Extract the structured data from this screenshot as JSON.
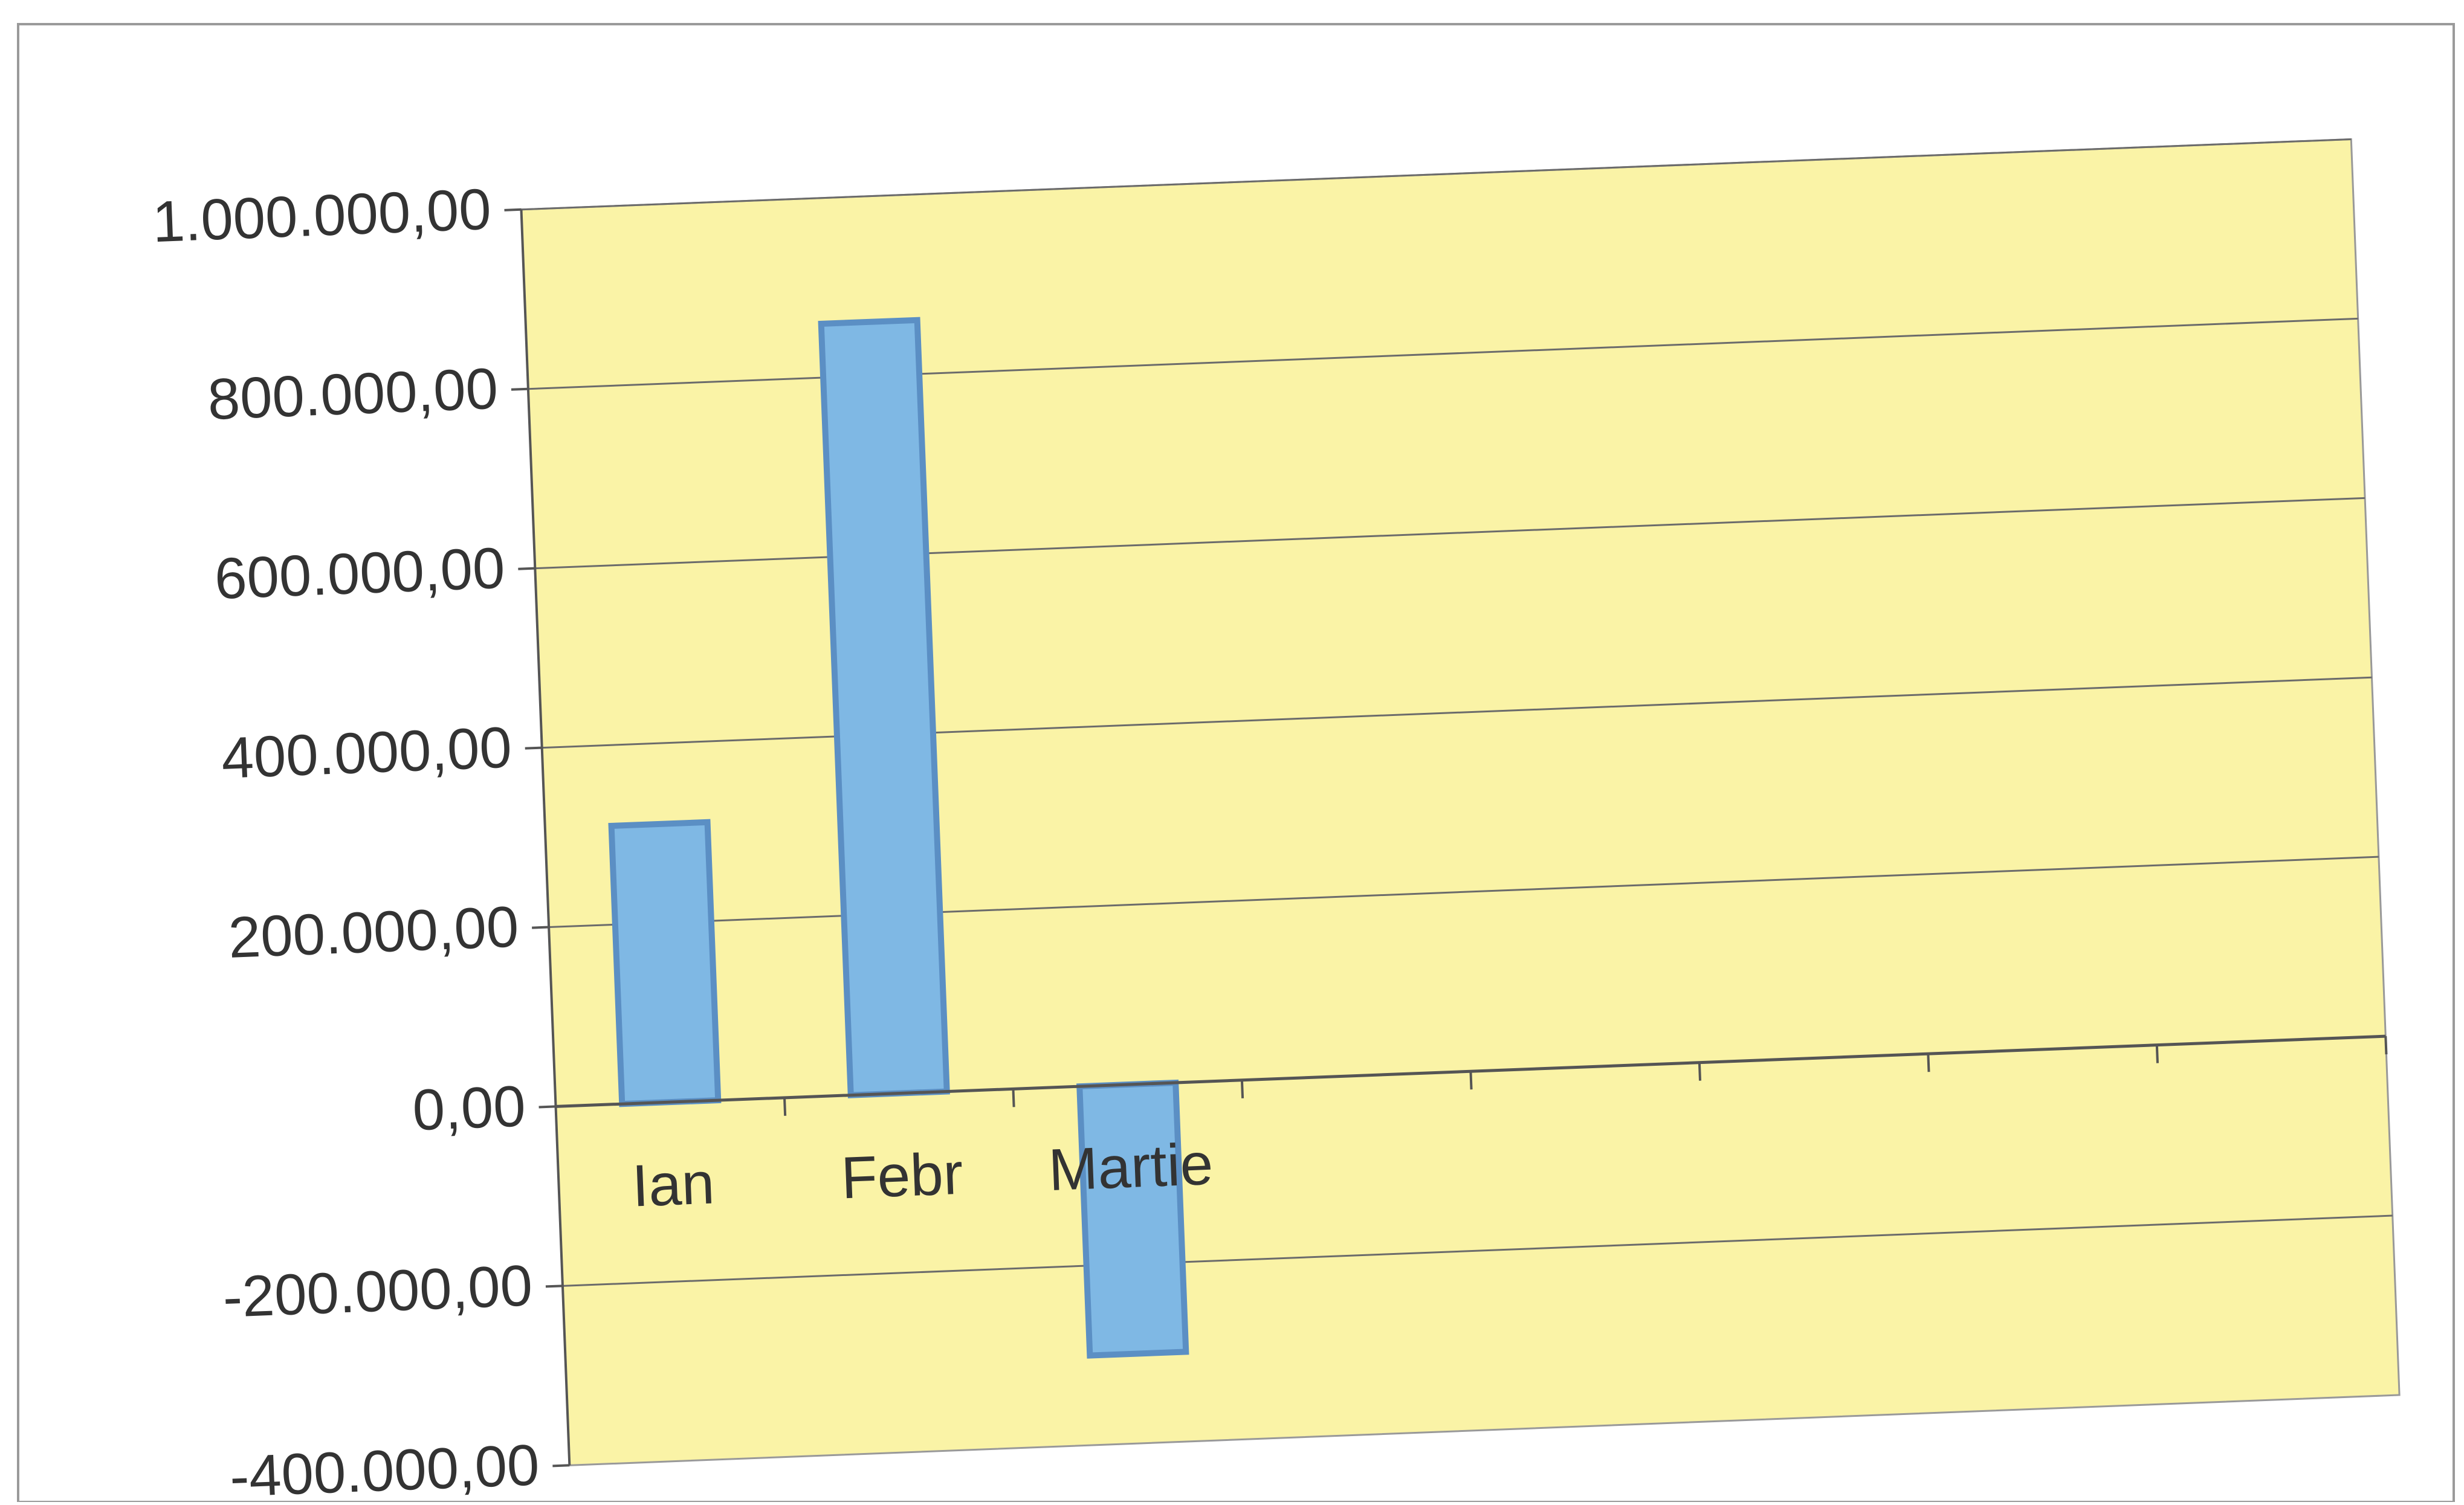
{
  "chart_data": {
    "type": "bar",
    "categories": [
      "Ian",
      "Febr",
      "Martie"
    ],
    "values": [
      310000,
      860000,
      -300000
    ],
    "ylim": [
      -400000,
      1000000
    ],
    "y_ticks": [
      {
        "value": 1000000,
        "label": "1.000.000,00"
      },
      {
        "value": 800000,
        "label": "800.000,00"
      },
      {
        "value": 600000,
        "label": "600.000,00"
      },
      {
        "value": 400000,
        "label": "400.000,00"
      },
      {
        "value": 200000,
        "label": "200.000,00"
      },
      {
        "value": 0,
        "label": "0,00"
      },
      {
        "value": -200000,
        "label": "-200.000,00"
      },
      {
        "value": -400000,
        "label": "-400.000,00"
      }
    ],
    "category_slots": 8,
    "grid": true,
    "legend": false,
    "title": "",
    "xlabel": "",
    "ylabel": "",
    "colors": {
      "plot_background": "#faf3a6",
      "bar_fill": "#7fb8e4",
      "bar_stroke": "#5b8fc4",
      "gridline": "#6b6b6b",
      "axis": "#555555",
      "text": "#333333",
      "frame": "#999999"
    }
  }
}
